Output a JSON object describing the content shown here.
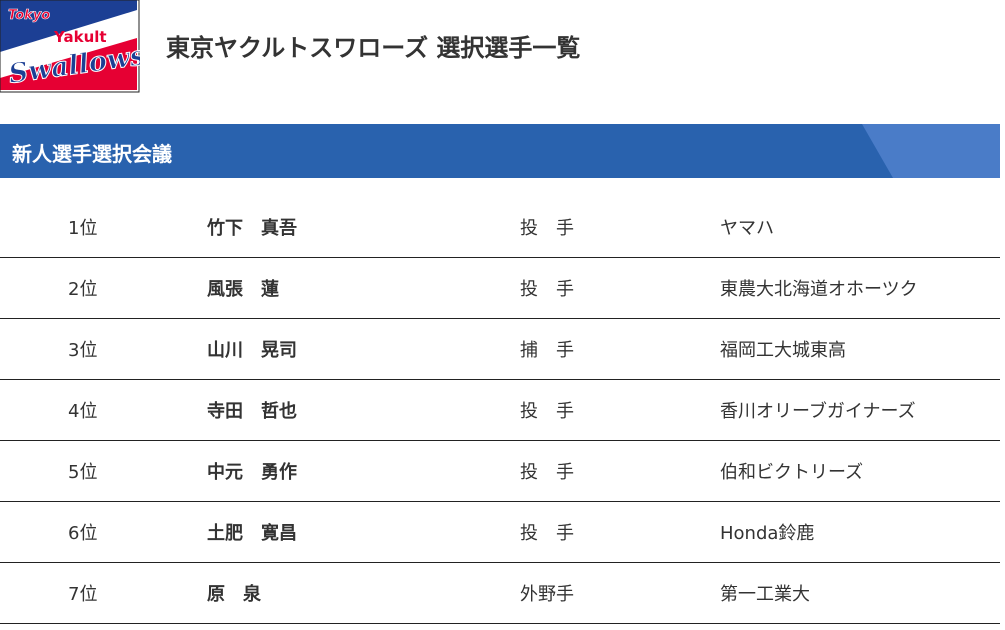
{
  "logo": {
    "text_top": "Tokyo",
    "text_mid": "Yakult",
    "text_main": "Swallows",
    "colors": {
      "blue": "#1c3f94",
      "red": "#e60033",
      "white": "#ffffff"
    }
  },
  "header": {
    "title": "東京ヤクルトスワローズ 選択選手一覧"
  },
  "section": {
    "title": "新人選手選択会議",
    "colors": {
      "bar": "#2962ae",
      "accent": "#4a7cc8"
    }
  },
  "players": [
    {
      "rank": "1位",
      "name": "竹下　真吾",
      "position": "投　手",
      "team": "ヤマハ"
    },
    {
      "rank": "2位",
      "name": "風張　蓮",
      "position": "投　手",
      "team": "東農大北海道オホーツク"
    },
    {
      "rank": "3位",
      "name": "山川　晃司",
      "position": "捕　手",
      "team": "福岡工大城東高"
    },
    {
      "rank": "4位",
      "name": "寺田　哲也",
      "position": "投　手",
      "team": "香川オリーブガイナーズ"
    },
    {
      "rank": "5位",
      "name": "中元　勇作",
      "position": "投　手",
      "team": "伯和ビクトリーズ"
    },
    {
      "rank": "6位",
      "name": "土肥　寛昌",
      "position": "投　手",
      "team": "Honda鈴鹿"
    },
    {
      "rank": "7位",
      "name": "原　泉",
      "position": "外野手",
      "team": "第一工業大"
    }
  ]
}
